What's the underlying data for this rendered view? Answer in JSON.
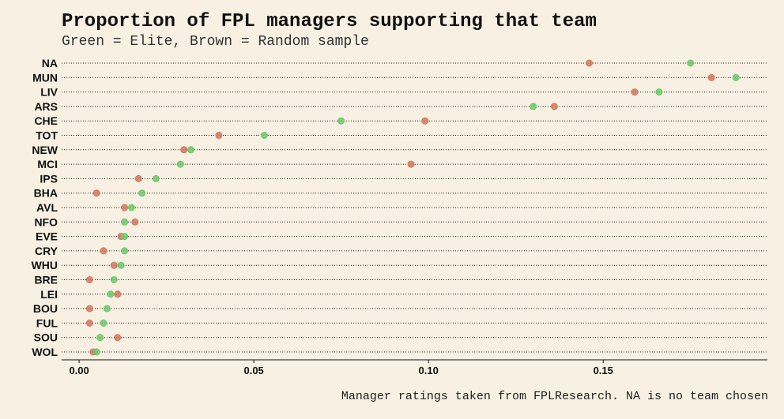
{
  "chart_data": {
    "type": "scatter",
    "title": "Proportion of FPL managers supporting that team",
    "subtitle": "Green = Elite, Brown = Random sample",
    "caption": "Manager ratings taken from FPLResearch. NA is no team chosen",
    "xlabel": "",
    "ylabel": "",
    "xlim": [
      -0.005,
      0.197
    ],
    "xticks": [
      0.0,
      0.05,
      0.1,
      0.15
    ],
    "xtick_labels": [
      "0.00",
      "0.05",
      "0.10",
      "0.15"
    ],
    "grid": "dotted horizontal",
    "categories": [
      "NA",
      "MUN",
      "LIV",
      "ARS",
      "CHE",
      "TOT",
      "NEW",
      "MCI",
      "IPS",
      "BHA",
      "AVL",
      "NFO",
      "EVE",
      "CRY",
      "WHU",
      "BRE",
      "LEI",
      "BOU",
      "FUL",
      "SOU",
      "WOL"
    ],
    "series": [
      {
        "name": "Random sample",
        "color": "#d07860",
        "values": [
          0.146,
          0.181,
          0.159,
          0.136,
          0.099,
          0.04,
          0.03,
          0.095,
          0.017,
          0.005,
          0.013,
          0.016,
          0.012,
          0.007,
          0.01,
          0.003,
          0.011,
          0.003,
          0.003,
          0.011,
          0.004
        ]
      },
      {
        "name": "Elite",
        "color": "#6dc869",
        "values": [
          0.175,
          0.188,
          0.166,
          0.13,
          0.075,
          0.053,
          0.032,
          0.029,
          0.022,
          0.018,
          0.015,
          0.013,
          0.013,
          0.013,
          0.012,
          0.01,
          0.009,
          0.008,
          0.007,
          0.006,
          0.005
        ]
      }
    ]
  }
}
